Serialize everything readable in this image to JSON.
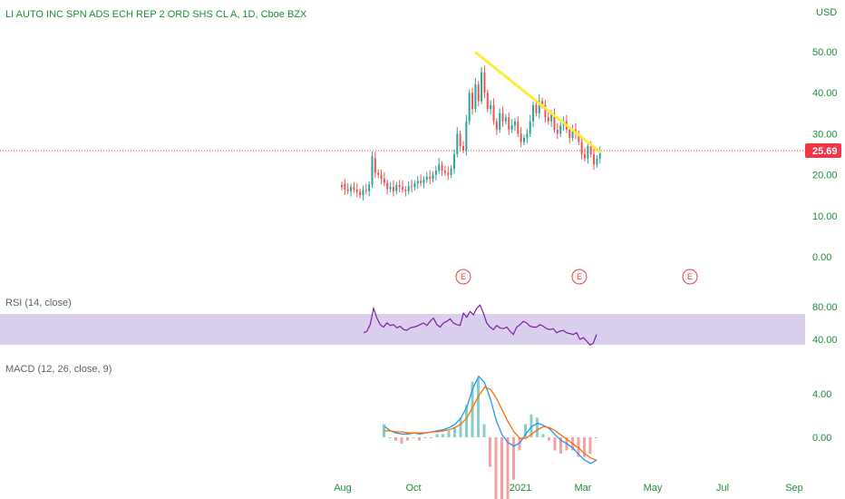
{
  "title": "LI AUTO INC SPN ADS ECH REP 2 ORD SHS CL A, 1D, Cboe BZX",
  "currency": "USD",
  "last_price": "25.69",
  "colors": {
    "up": "#26a69a",
    "down": "#ef5350",
    "trendline": "#ffeb3b",
    "rsi_line": "#7b1fa2",
    "rsi_band": "#d1c4e9",
    "macd_line": "#2196f3",
    "signal_line": "#ff6d00",
    "last_price": "#f23645",
    "axis_text": "#1e8b3a",
    "event": "#e0424a"
  },
  "rsi_label": "RSI (14, close)",
  "macd_label": "MACD (12, 26, close, 9)",
  "events": [
    "E",
    "E",
    "E"
  ],
  "chart_data": {
    "type": "candlestick",
    "price_axis": {
      "ticks": [
        "50.00",
        "40.00",
        "30.00",
        "20.00",
        "10.00",
        "0.00"
      ],
      "ylim": [
        0,
        50
      ]
    },
    "x_ticks": [
      "Aug",
      "Oct",
      "2021",
      "Mar",
      "May",
      "Jul",
      "Sep"
    ],
    "price_series": [
      [
        17.5,
        17.0
      ],
      [
        17.8,
        16.4
      ],
      [
        16.4,
        16.0
      ],
      [
        16.0,
        17.0
      ],
      [
        17.0,
        16.4
      ],
      [
        16.4,
        15.8
      ],
      [
        15.8,
        15.0
      ],
      [
        15.0,
        16.2
      ],
      [
        16.2,
        16.0
      ],
      [
        16.0,
        17.6
      ],
      [
        17.6,
        24.5
      ],
      [
        24.0,
        20.5
      ],
      [
        20.5,
        20.0
      ],
      [
        20.0,
        19.0
      ],
      [
        19.0,
        18.0
      ],
      [
        18.0,
        16.5
      ],
      [
        16.5,
        17.0
      ],
      [
        17.0,
        16.0
      ],
      [
        16.0,
        17.5
      ],
      [
        17.5,
        17.0
      ],
      [
        17.0,
        16.4
      ],
      [
        16.4,
        16.0
      ],
      [
        16.0,
        17.2
      ],
      [
        17.2,
        17.0
      ],
      [
        17.0,
        17.9
      ],
      [
        17.9,
        18.5
      ],
      [
        18.5,
        18.0
      ],
      [
        18.0,
        18.8
      ],
      [
        18.8,
        19.5
      ],
      [
        19.5,
        19.0
      ],
      [
        19.0,
        20.0
      ],
      [
        20.0,
        21.0
      ],
      [
        21.0,
        22.5
      ],
      [
        22.5,
        21.0
      ],
      [
        21.0,
        20.5
      ],
      [
        20.5,
        20.0
      ],
      [
        20.0,
        21.5
      ],
      [
        21.5,
        25.0
      ],
      [
        25.0,
        30.0
      ],
      [
        30.0,
        27.0
      ],
      [
        27.0,
        26.0
      ],
      [
        26.0,
        33.0
      ],
      [
        33.0,
        40.0
      ],
      [
        40.0,
        36.0
      ],
      [
        36.0,
        42.0
      ],
      [
        42.0,
        38.0
      ],
      [
        38.0,
        45.0
      ],
      [
        45.0,
        40.0
      ],
      [
        40.0,
        36.0
      ],
      [
        36.0,
        37.0
      ],
      [
        37.0,
        33.0
      ],
      [
        33.0,
        31.0
      ],
      [
        31.0,
        35.0
      ],
      [
        35.0,
        33.0
      ],
      [
        33.0,
        34.0
      ],
      [
        34.0,
        31.0
      ],
      [
        31.0,
        32.0
      ],
      [
        32.0,
        33.0
      ],
      [
        33.0,
        30.0
      ],
      [
        30.0,
        28.0
      ],
      [
        28.0,
        29.0
      ],
      [
        29.0,
        30.0
      ],
      [
        30.0,
        33.0
      ],
      [
        33.0,
        37.0
      ],
      [
        37.0,
        35.0
      ],
      [
        35.0,
        38.0
      ],
      [
        38.0,
        37.0
      ],
      [
        37.0,
        34.0
      ],
      [
        34.0,
        33.0
      ],
      [
        33.0,
        35.0
      ],
      [
        35.0,
        31.0
      ],
      [
        31.0,
        30.0
      ],
      [
        30.0,
        32.0
      ],
      [
        32.0,
        33.0
      ],
      [
        33.0,
        31.0
      ],
      [
        31.0,
        29.0
      ],
      [
        29.0,
        31.0
      ],
      [
        31.0,
        30.0
      ],
      [
        30.0,
        28.0
      ],
      [
        28.0,
        25.0
      ],
      [
        25.0,
        24.0
      ],
      [
        24.0,
        27.0
      ],
      [
        27.0,
        25.0
      ],
      [
        25.0,
        22.5
      ],
      [
        22.5,
        24.0
      ],
      [
        24.0,
        25.7
      ]
    ],
    "trendline": [
      [
        46,
        51.5
      ],
      [
        85,
        26.0
      ]
    ],
    "rsi": {
      "ticks": [
        "80.00",
        "40.00"
      ],
      "band": [
        30,
        70
      ],
      "values": [
        48,
        50,
        58,
        78,
        66,
        58,
        55,
        60,
        57,
        58,
        54,
        56,
        52,
        51,
        54,
        55,
        56,
        58,
        60,
        57,
        62,
        66,
        58,
        55,
        60,
        62,
        65,
        60,
        58,
        57,
        72,
        67,
        74,
        70,
        78,
        82,
        72,
        60,
        55,
        52,
        57,
        54,
        53,
        55,
        50,
        46,
        55,
        58,
        62,
        60,
        56,
        55,
        55,
        58,
        56,
        53,
        52,
        53,
        48,
        50,
        51,
        48,
        47,
        46,
        48,
        40,
        42,
        38,
        33,
        35,
        46
      ]
    },
    "macd": {
      "ticks": [
        "4.00",
        "0.00"
      ],
      "macd": [
        1.0,
        0.6,
        0.4,
        0.3,
        0.3,
        0.4,
        0.3,
        0.4,
        0.5,
        0.6,
        0.7,
        0.9,
        1.2,
        1.8,
        2.8,
        4.5,
        5.6,
        5.0,
        3.5,
        1.5,
        0.2,
        -0.5,
        -0.8,
        -0.5,
        0.3,
        1.0,
        1.3,
        1.1,
        0.8,
        0.2,
        -0.3,
        -0.6,
        -1.0,
        -1.6,
        -2.1,
        -2.4,
        -2.1
      ],
      "signal": [
        0.6,
        0.6,
        0.5,
        0.5,
        0.4,
        0.4,
        0.4,
        0.4,
        0.5,
        0.5,
        0.6,
        0.7,
        0.9,
        1.2,
        1.8,
        2.8,
        3.8,
        4.6,
        4.4,
        3.6,
        2.5,
        1.4,
        0.5,
        -0.1,
        -0.1,
        0.3,
        0.7,
        1.0,
        0.9,
        0.6,
        0.2,
        -0.2,
        -0.6,
        -1.0,
        -1.5,
        -1.9,
        -2.1
      ]
    },
    "xlabel": "",
    "ylabel": ""
  }
}
